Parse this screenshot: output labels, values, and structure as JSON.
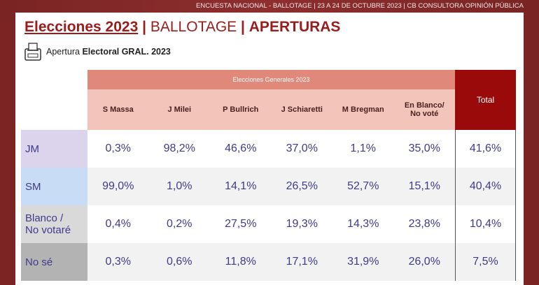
{
  "header": {
    "banner": "ENCUESTA NACIONAL - BALLOTAGE | 23 A 24 DE OCTUBRE 2023 | CB CONSULTORA OPINIÓN PÚBLICA"
  },
  "title": {
    "main": "Elecciones 2023",
    "separator": "|",
    "section": "BALLOTAGE",
    "subsection": "APERTURAS"
  },
  "subtitle": {
    "prefix": "Apertura",
    "emphasis": "Electoral GRAL. 2023"
  },
  "table": {
    "group_header": "Elecciones Generales 2023",
    "total_header": "Total",
    "columns": [
      [
        "S Massa"
      ],
      [
        "J Milei"
      ],
      [
        "P Bullrich"
      ],
      [
        "J Schiaretti"
      ],
      [
        "M Bregman"
      ],
      [
        "En Blanco/",
        "No voté"
      ]
    ],
    "rows": [
      {
        "label": [
          "JM"
        ],
        "values": [
          "0,3%",
          "98,2%",
          "46,6%",
          "37,0%",
          "1,1%",
          "35,0%"
        ],
        "total": "41,6%"
      },
      {
        "label": [
          "SM"
        ],
        "values": [
          "99,0%",
          "1,0%",
          "14,1%",
          "26,5%",
          "52,7%",
          "15,1%"
        ],
        "total": "40,4%"
      },
      {
        "label": [
          "Blanco /",
          "No votaré"
        ],
        "values": [
          "0,4%",
          "0,2%",
          "27,5%",
          "19,3%",
          "14,3%",
          "23,8%"
        ],
        "total": "10,4%"
      },
      {
        "label": [
          "No sé"
        ],
        "values": [
          "0,3%",
          "0,6%",
          "11,8%",
          "17,1%",
          "31,9%",
          "26,0%"
        ],
        "total": "7,5%"
      }
    ]
  }
}
